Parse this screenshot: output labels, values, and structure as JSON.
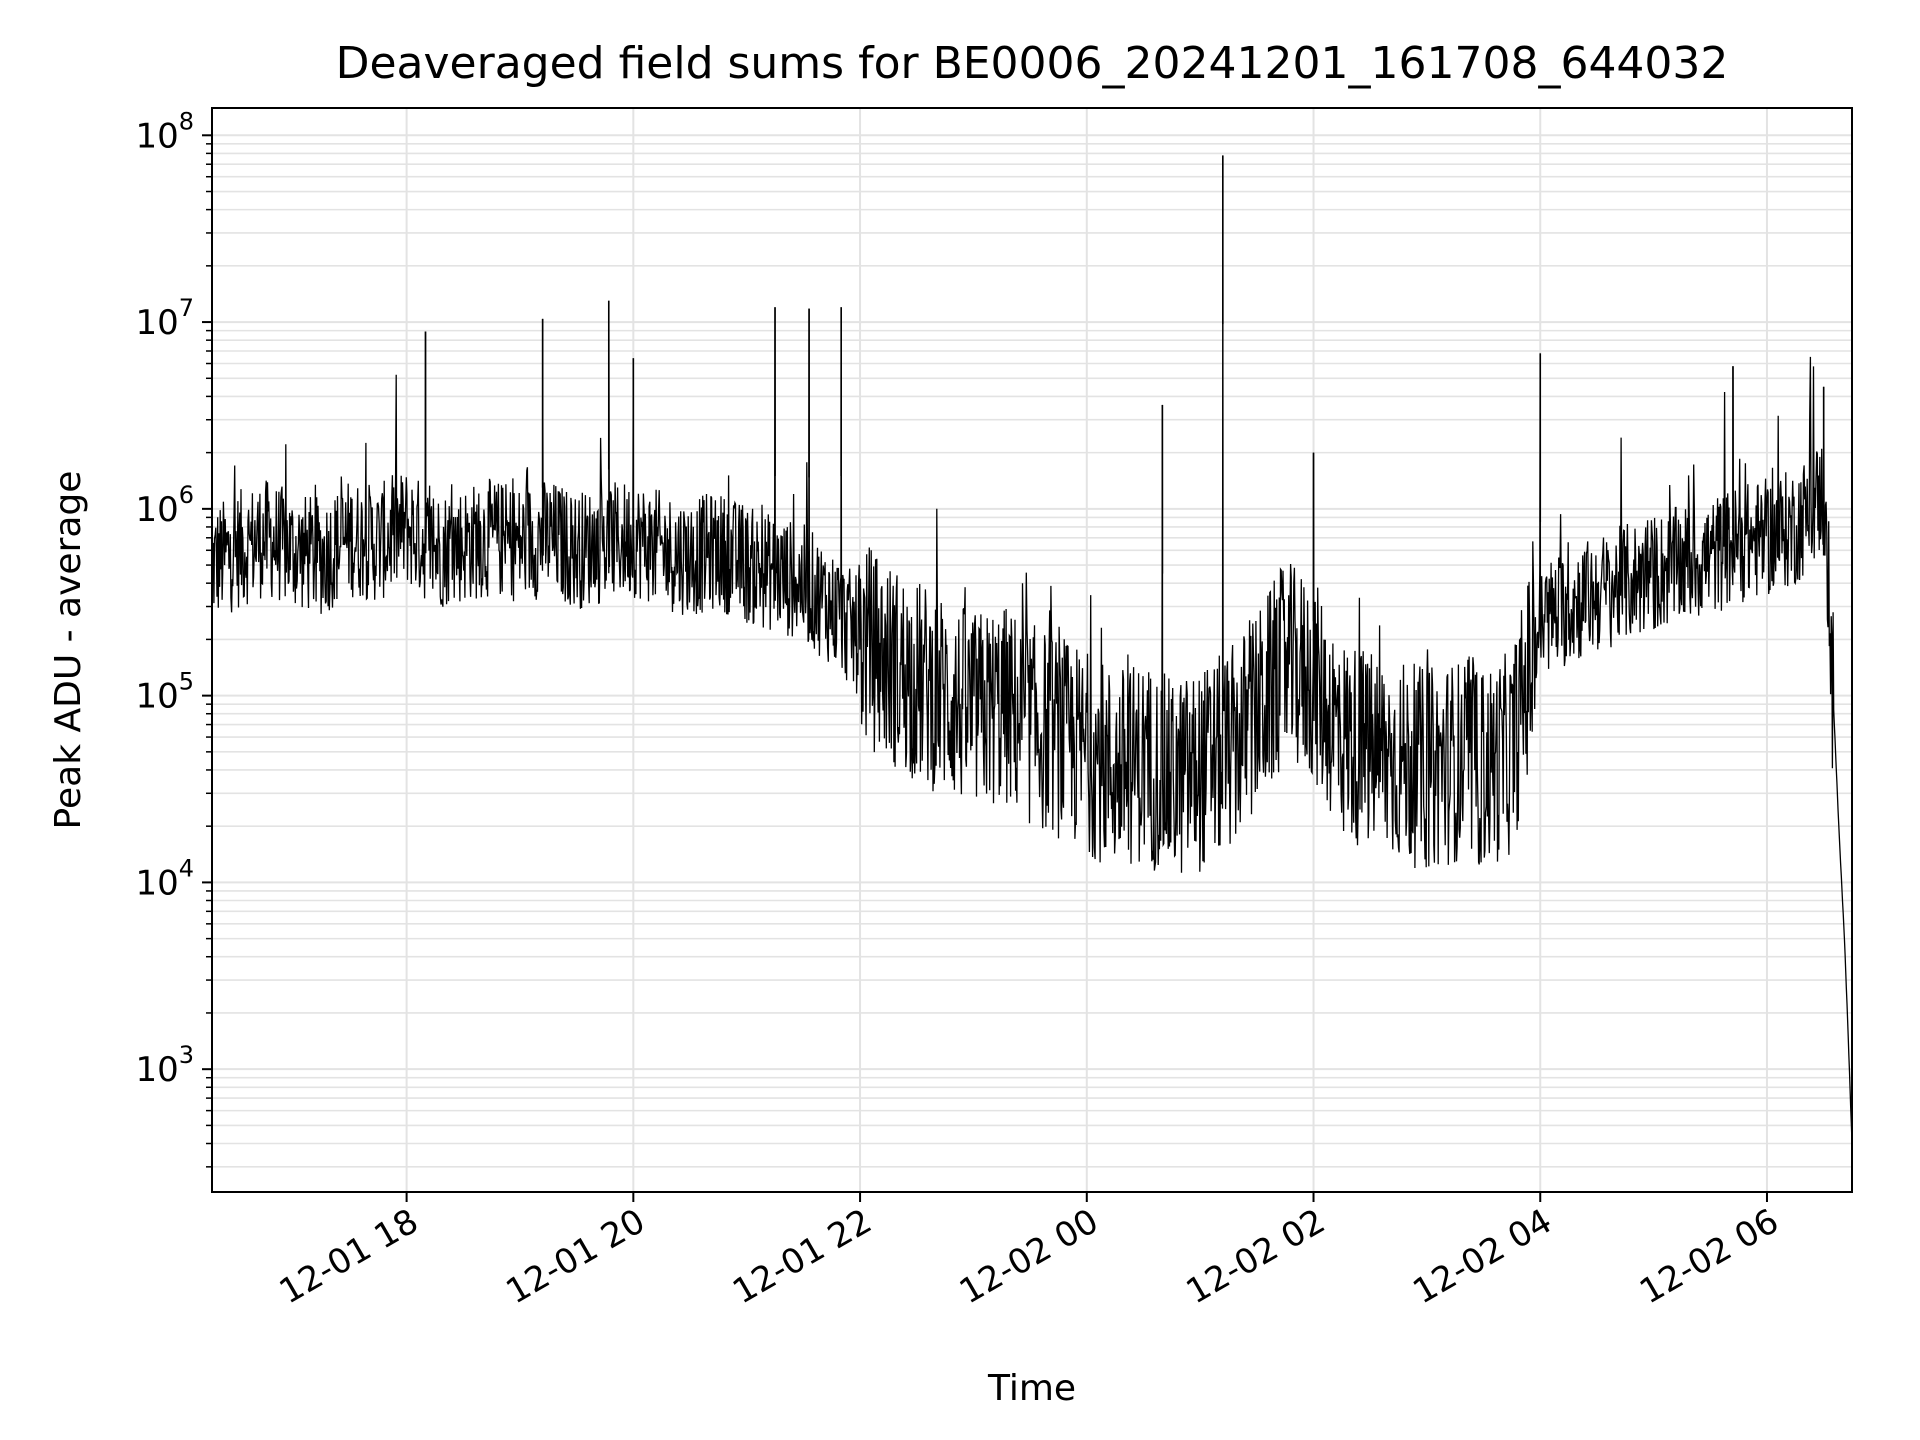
{
  "chart_data": {
    "type": "line",
    "title": "Deaveraged field sums for BE0006_20241201_161708_644032",
    "xlabel": "Time",
    "ylabel": "Peak ADU - average",
    "xscale": "time",
    "yscale": "log",
    "xlim": [
      "2024-12-01 16:17",
      "2024-12-02 06:45"
    ],
    "ylim": [
      220,
      140000000
    ],
    "grid": true,
    "line_color": "#000000",
    "x_ticks": [
      {
        "label": "12-01 18",
        "value": "2024-12-01 18:00"
      },
      {
        "label": "12-01 20",
        "value": "2024-12-01 20:00"
      },
      {
        "label": "12-01 22",
        "value": "2024-12-01 22:00"
      },
      {
        "label": "12-02 00",
        "value": "2024-12-02 00:00"
      },
      {
        "label": "12-02 02",
        "value": "2024-12-02 02:00"
      },
      {
        "label": "12-02 04",
        "value": "2024-12-02 04:00"
      },
      {
        "label": "12-02 06",
        "value": "2024-12-02 06:00"
      }
    ],
    "y_ticks": [
      {
        "base": "10",
        "exp": "3",
        "value": 1000
      },
      {
        "base": "10",
        "exp": "4",
        "value": 10000
      },
      {
        "base": "10",
        "exp": "5",
        "value": 100000
      },
      {
        "base": "10",
        "exp": "6",
        "value": 1000000
      },
      {
        "base": "10",
        "exp": "7",
        "value": 10000000
      },
      {
        "base": "10",
        "exp": "8",
        "value": 100000000
      }
    ],
    "series": [
      {
        "points": [
          [
            "2024-12-01 16:17",
            500000
          ],
          [
            "2024-12-01 16:30",
            600000
          ],
          [
            "2024-12-01 16:45",
            700000
          ],
          [
            "2024-12-01 17:00",
            600000
          ],
          [
            "2024-12-01 17:15",
            550000
          ],
          [
            "2024-12-01 17:30",
            700000
          ],
          [
            "2024-12-01 17:45",
            650000
          ],
          [
            "2024-12-01 18:00",
            800000
          ],
          [
            "2024-12-01 18:15",
            600000
          ],
          [
            "2024-12-01 18:30",
            650000
          ],
          [
            "2024-12-01 18:45",
            700000
          ],
          [
            "2024-12-01 19:00",
            650000
          ],
          [
            "2024-12-01 19:15",
            700000
          ],
          [
            "2024-12-01 19:30",
            600000
          ],
          [
            "2024-12-01 19:45",
            650000
          ],
          [
            "2024-12-01 20:00",
            700000
          ],
          [
            "2024-12-01 20:15",
            600000
          ],
          [
            "2024-12-01 20:30",
            550000
          ],
          [
            "2024-12-01 20:45",
            600000
          ],
          [
            "2024-12-01 21:00",
            500000
          ],
          [
            "2024-12-01 21:15",
            450000
          ],
          [
            "2024-12-01 21:30",
            400000
          ],
          [
            "2024-12-01 21:45",
            300000
          ],
          [
            "2024-12-01 22:00",
            200000
          ],
          [
            "2024-12-01 22:15",
            150000
          ],
          [
            "2024-12-01 22:30",
            120000
          ],
          [
            "2024-12-01 22:45",
            100000
          ],
          [
            "2024-12-01 23:00",
            80000
          ],
          [
            "2024-12-01 23:15",
            90000
          ],
          [
            "2024-12-01 23:30",
            70000
          ],
          [
            "2024-12-01 23:45",
            60000
          ],
          [
            "2024-12-02 00:00",
            50000
          ],
          [
            "2024-12-02 00:15",
            40000
          ],
          [
            "2024-12-02 00:30",
            45000
          ],
          [
            "2024-12-02 00:45",
            35000
          ],
          [
            "2024-12-02 01:00",
            40000
          ],
          [
            "2024-12-02 01:15",
            50000
          ],
          [
            "2024-12-02 01:30",
            80000
          ],
          [
            "2024-12-02 01:45",
            150000
          ],
          [
            "2024-12-02 02:00",
            120000
          ],
          [
            "2024-12-02 02:15",
            60000
          ],
          [
            "2024-12-02 02:30",
            50000
          ],
          [
            "2024-12-02 02:45",
            45000
          ],
          [
            "2024-12-02 03:00",
            40000
          ],
          [
            "2024-12-02 03:15",
            45000
          ],
          [
            "2024-12-02 03:30",
            40000
          ],
          [
            "2024-12-02 03:45",
            50000
          ],
          [
            "2024-12-02 04:00",
            250000
          ],
          [
            "2024-12-02 04:15",
            300000
          ],
          [
            "2024-12-02 04:30",
            350000
          ],
          [
            "2024-12-02 04:45",
            400000
          ],
          [
            "2024-12-02 05:00",
            450000
          ],
          [
            "2024-12-02 05:15",
            500000
          ],
          [
            "2024-12-02 05:30",
            550000
          ],
          [
            "2024-12-02 05:45",
            650000
          ],
          [
            "2024-12-02 06:00",
            700000
          ],
          [
            "2024-12-02 06:15",
            800000
          ],
          [
            "2024-12-02 06:30",
            1200000
          ],
          [
            "2024-12-02 06:35",
            100000
          ],
          [
            "2024-12-02 06:38",
            20000
          ],
          [
            "2024-12-02 06:41",
            5000
          ],
          [
            "2024-12-02 06:43",
            1500
          ],
          [
            "2024-12-02 06:45",
            400
          ]
        ],
        "spikes": [
          [
            "2024-12-01 18:10",
            8900000
          ],
          [
            "2024-12-01 19:12",
            10400000
          ],
          [
            "2024-12-01 19:47",
            13000000
          ],
          [
            "2024-12-01 20:00",
            6400000
          ],
          [
            "2024-12-01 21:15",
            12000000
          ],
          [
            "2024-12-01 21:33",
            11800000
          ],
          [
            "2024-12-01 21:50",
            12000000
          ],
          [
            "2024-12-02 00:40",
            3600000
          ],
          [
            "2024-12-02 01:12",
            78000000
          ],
          [
            "2024-12-02 02:00",
            2000000
          ],
          [
            "2024-12-02 04:00",
            6800000
          ],
          [
            "2024-12-02 05:42",
            5800000
          ],
          [
            "2024-12-02 06:30",
            4500000
          ]
        ]
      }
    ]
  }
}
